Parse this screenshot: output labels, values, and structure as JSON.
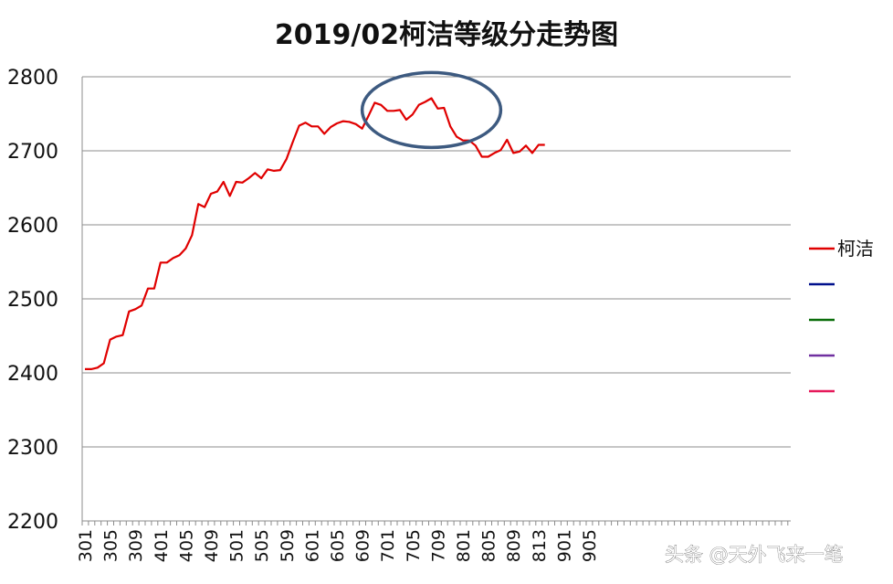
{
  "chart_data": {
    "type": "line",
    "title": "2019/02柯洁等级分走势图",
    "xlabel": "",
    "ylabel": "",
    "ylim": [
      2200,
      2800
    ],
    "y_ticks": [
      2200,
      2300,
      2400,
      2500,
      2600,
      2700,
      2800
    ],
    "grid": "horizontal",
    "legend_position": "right",
    "x_tick_labels": [
      "301",
      "305",
      "309",
      "401",
      "405",
      "409",
      "501",
      "505",
      "509",
      "601",
      "605",
      "609",
      "701",
      "705",
      "709",
      "801",
      "805",
      "809",
      "813",
      "901",
      "905"
    ],
    "series": [
      {
        "name": "柯洁",
        "color": "#e00000",
        "values": [
          2405,
          2405,
          2407,
          2413,
          2445,
          2449,
          2451,
          2483,
          2486,
          2491,
          2514,
          2514,
          2549,
          2549,
          2555,
          2559,
          2568,
          2586,
          2628,
          2624,
          2642,
          2645,
          2658,
          2639,
          2658,
          2657,
          2663,
          2670,
          2663,
          2675,
          2673,
          2674,
          2689,
          2712,
          2734,
          2738,
          2733,
          2733,
          2723,
          2732,
          2737,
          2740,
          2739,
          2736,
          2730,
          2747,
          2765,
          2762,
          2754,
          2754,
          2755,
          2742,
          2749,
          2762,
          2766,
          2771,
          2757,
          2758,
          2733,
          2719,
          2714,
          2714,
          2707,
          2692,
          2692,
          2697,
          2701,
          2715,
          2697,
          2699,
          2707,
          2697,
          2708,
          2708
        ]
      },
      {
        "name": "",
        "color": "#00108c",
        "values": []
      },
      {
        "name": "",
        "color": "#0a6e0a",
        "values": []
      },
      {
        "name": "",
        "color": "#7030a0",
        "values": []
      },
      {
        "name": "",
        "color": "#e6195a",
        "values": []
      }
    ],
    "annotation": {
      "type": "ellipse",
      "color": "#3d5a80",
      "x_range": [
        701,
        712
      ],
      "y_center": 2755
    }
  },
  "watermark": "头条 @天外飞来一笔"
}
